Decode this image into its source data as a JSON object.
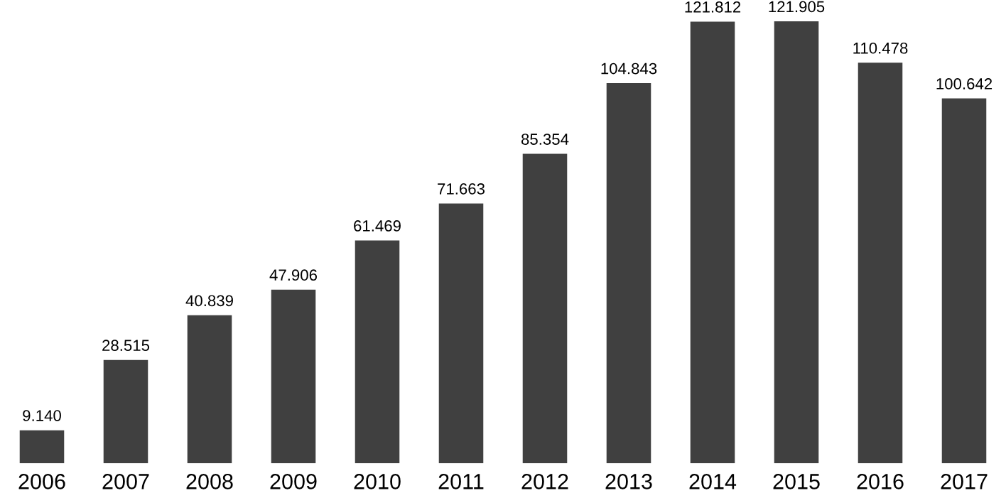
{
  "chart_data": {
    "type": "bar",
    "categories": [
      "2006",
      "2007",
      "2008",
      "2009",
      "2010",
      "2011",
      "2012",
      "2013",
      "2014",
      "2015",
      "2016",
      "2017"
    ],
    "values": [
      9.14,
      28.515,
      40.839,
      47.906,
      61.469,
      71.663,
      85.354,
      104.843,
      121.812,
      121.905,
      110.478,
      100.642
    ],
    "value_labels": [
      "9.140",
      "28.515",
      "40.839",
      "47.906",
      "61.469",
      "71.663",
      "85.354",
      "104.843",
      "121.812",
      "121.905",
      "110.478",
      "100.642"
    ],
    "color": "#404040",
    "grid": false,
    "legend": false
  }
}
